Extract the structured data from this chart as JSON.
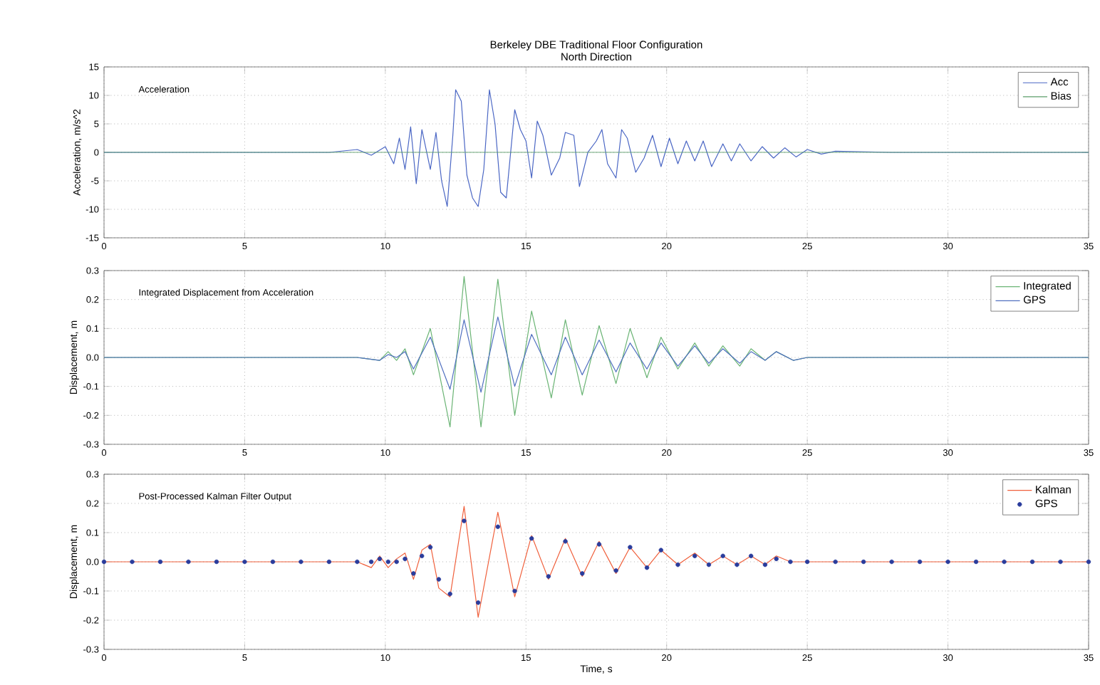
{
  "chart_data": [
    {
      "type": "line",
      "title": "Berkeley DBE Traditional Floor Configuration",
      "subtitle": "North Direction",
      "ylabel": "Acceleration, m/s^2",
      "annotations": [
        "Acceleration"
      ],
      "xlim": [
        0,
        35
      ],
      "xticks": [
        0,
        5,
        10,
        15,
        20,
        25,
        30,
        35
      ],
      "ylim": [
        -15,
        15
      ],
      "yticks": [
        -15,
        -10,
        -5,
        0,
        5,
        10,
        15
      ],
      "grid": true,
      "legend": "top right",
      "series": [
        {
          "name": "Acc",
          "color": "#4a66c4",
          "x": [
            0,
            5,
            8,
            9,
            9.5,
            10,
            10.3,
            10.5,
            10.7,
            10.9,
            11.1,
            11.3,
            11.6,
            11.8,
            12,
            12.2,
            12.4,
            12.5,
            12.7,
            12.9,
            13.1,
            13.3,
            13.5,
            13.7,
            13.9,
            14.1,
            14.3,
            14.6,
            14.8,
            15,
            15.2,
            15.4,
            15.6,
            15.9,
            16.2,
            16.4,
            16.7,
            16.9,
            17.2,
            17.5,
            17.7,
            17.9,
            18.2,
            18.4,
            18.6,
            18.9,
            19.2,
            19.5,
            19.8,
            20.1,
            20.4,
            20.7,
            21,
            21.3,
            21.6,
            22,
            22.3,
            22.6,
            23,
            23.4,
            23.8,
            24.2,
            24.6,
            25,
            25.5,
            26,
            28,
            35
          ],
          "values": [
            0,
            0,
            0,
            0.5,
            -0.5,
            1,
            -2,
            2.5,
            -3,
            4.5,
            -5.5,
            4,
            -3,
            3.5,
            -5,
            -9.5,
            3,
            11,
            9,
            -4,
            -8,
            -9.5,
            -3,
            11,
            5,
            -7,
            -8,
            7.5,
            4,
            2,
            -4.5,
            5.5,
            3,
            -4,
            -1,
            3.5,
            3,
            -6,
            0,
            2,
            4,
            -2,
            -4.5,
            4,
            2.5,
            -3.5,
            -1,
            3,
            -2.5,
            2.5,
            -2,
            2,
            -1.5,
            2,
            -2.5,
            1.5,
            -1.5,
            1.5,
            -1.5,
            1,
            -1,
            0.8,
            -0.8,
            0.5,
            -0.3,
            0.2,
            0,
            0
          ]
        },
        {
          "name": "Bias",
          "color": "#5c9e6a",
          "x": [
            0,
            35
          ],
          "values": [
            0,
            0
          ]
        }
      ]
    },
    {
      "type": "line",
      "ylabel": "Displacement, m",
      "annotations": [
        "Integrated Displacement from Acceleration"
      ],
      "xlim": [
        0,
        35
      ],
      "xticks": [
        0,
        5,
        10,
        15,
        20,
        25,
        30,
        35
      ],
      "ylim": [
        -0.3,
        0.3
      ],
      "yticks": [
        -0.3,
        -0.2,
        -0.1,
        {
          "value": 0,
          "label": "0.0"
        },
        0.1,
        0.2,
        0.3
      ],
      "grid": true,
      "legend": "top right",
      "series": [
        {
          "name": "Integrated",
          "color": "#6ab474",
          "x": [
            0,
            9,
            9.8,
            10.1,
            10.4,
            10.7,
            11.0,
            11.6,
            12.3,
            12.8,
            13.4,
            14.0,
            14.6,
            15.2,
            15.9,
            16.4,
            17.0,
            17.6,
            18.2,
            18.7,
            19.3,
            19.8,
            20.4,
            21.0,
            21.5,
            22.0,
            22.6,
            23.0,
            23.5,
            23.9,
            24.5,
            25,
            35
          ],
          "values": [
            0,
            0,
            -0.01,
            0.02,
            -0.01,
            0.03,
            -0.06,
            0.1,
            -0.24,
            0.28,
            -0.24,
            0.27,
            -0.2,
            0.16,
            -0.14,
            0.13,
            -0.13,
            0.11,
            -0.09,
            0.1,
            -0.07,
            0.07,
            -0.04,
            0.05,
            -0.03,
            0.04,
            -0.03,
            0.03,
            -0.01,
            0.02,
            -0.01,
            0,
            0
          ]
        },
        {
          "name": "GPS",
          "color": "#5070c0",
          "x": [
            0,
            9,
            9.8,
            10.1,
            10.4,
            10.7,
            11.0,
            11.6,
            12.3,
            12.8,
            13.4,
            14.0,
            14.6,
            15.2,
            15.9,
            16.4,
            17.0,
            17.6,
            18.2,
            18.7,
            19.3,
            19.8,
            20.4,
            21.0,
            21.5,
            22.0,
            22.6,
            23.0,
            23.5,
            23.9,
            24.5,
            25,
            35
          ],
          "values": [
            0,
            0,
            -0.01,
            0.01,
            0,
            0.02,
            -0.04,
            0.07,
            -0.11,
            0.13,
            -0.12,
            0.14,
            -0.1,
            0.08,
            -0.06,
            0.07,
            -0.06,
            0.06,
            -0.05,
            0.05,
            -0.04,
            0.05,
            -0.03,
            0.04,
            -0.02,
            0.03,
            -0.02,
            0.02,
            -0.01,
            0.02,
            -0.01,
            0,
            0
          ]
        }
      ]
    },
    {
      "type": "line",
      "xlabel": "Time, s",
      "ylabel": "Displacement, m",
      "annotations": [
        "Post-Processed Kalman Filter Output"
      ],
      "xlim": [
        0,
        35
      ],
      "xticks": [
        0,
        5,
        10,
        15,
        20,
        25,
        30,
        35
      ],
      "ylim": [
        -0.3,
        0.3
      ],
      "yticks": [
        -0.3,
        -0.2,
        -0.1,
        {
          "value": 0,
          "label": "0.0"
        },
        0.1,
        0.2,
        0.3
      ],
      "grid": true,
      "legend": "top right",
      "series": [
        {
          "name": "Kalman",
          "color": "#f0603c",
          "x": [
            0,
            9,
            9.5,
            9.8,
            10.1,
            10.4,
            10.7,
            11.0,
            11.3,
            11.6,
            11.9,
            12.3,
            12.8,
            13.3,
            14.0,
            14.6,
            15.2,
            15.8,
            16.4,
            17.0,
            17.6,
            18.2,
            18.7,
            19.3,
            19.8,
            20.4,
            21.0,
            21.5,
            22.0,
            22.5,
            23.0,
            23.5,
            23.9,
            24.4,
            25,
            35
          ],
          "values": [
            0,
            0,
            -0.02,
            0.02,
            -0.02,
            0.01,
            0.03,
            -0.06,
            0.04,
            0.06,
            -0.09,
            -0.12,
            0.19,
            -0.19,
            0.17,
            -0.12,
            0.09,
            -0.06,
            0.08,
            -0.05,
            0.07,
            -0.04,
            0.05,
            -0.02,
            0.04,
            -0.01,
            0.03,
            -0.01,
            0.02,
            -0.01,
            0.02,
            -0.01,
            0.02,
            0,
            0,
            0
          ]
        },
        {
          "name": "GPS",
          "type": "scatter",
          "color": "#2a3c9c",
          "x": [
            0,
            1,
            2,
            3,
            4,
            5,
            6,
            7,
            8,
            9,
            9.5,
            9.8,
            10.1,
            10.4,
            10.7,
            11.0,
            11.3,
            11.6,
            11.9,
            12.3,
            12.8,
            13.3,
            14.0,
            14.6,
            15.2,
            15.8,
            16.4,
            17.0,
            17.6,
            18.2,
            18.7,
            19.3,
            19.8,
            20.4,
            21.0,
            21.5,
            22.0,
            22.5,
            23.0,
            23.5,
            23.9,
            24.4,
            25,
            26,
            27,
            28,
            29,
            30,
            31,
            32,
            33,
            34,
            35
          ],
          "values": [
            0,
            0,
            0,
            0,
            0,
            0,
            0,
            0,
            0,
            0,
            0,
            0.01,
            0,
            0,
            0.01,
            -0.04,
            0.02,
            0.05,
            -0.06,
            -0.11,
            0.14,
            -0.14,
            0.12,
            -0.1,
            0.08,
            -0.05,
            0.07,
            -0.04,
            0.06,
            -0.03,
            0.05,
            -0.02,
            0.04,
            -0.01,
            0.02,
            -0.01,
            0.02,
            -0.01,
            0.02,
            -0.01,
            0.01,
            0,
            0,
            0,
            0,
            0,
            0,
            0,
            0,
            0,
            0,
            0,
            0
          ]
        }
      ]
    }
  ]
}
